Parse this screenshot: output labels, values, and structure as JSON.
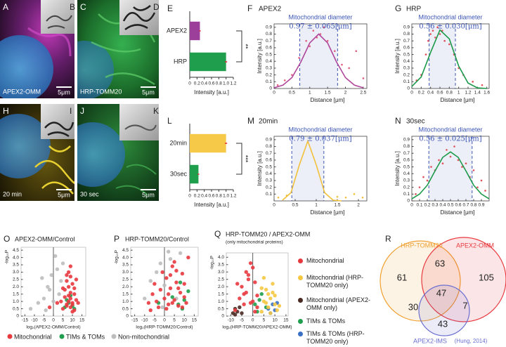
{
  "images": [
    {
      "label": "A",
      "inset_label": "B",
      "caption": "APEX2-OMM",
      "scale_bar": "5μm"
    },
    {
      "label": "C",
      "inset_label": "D",
      "caption": "HRP-TOMM20",
      "scale_bar": "5μm"
    },
    {
      "label": "H",
      "inset_label": "I",
      "caption": "20 min",
      "scale_bar": "5μm"
    },
    {
      "label": "J",
      "inset_label": "K",
      "caption": "30 sec",
      "scale_bar": "5μm"
    }
  ],
  "chart_data": [
    {
      "type": "bar",
      "panel": "E",
      "categories": [
        "APEX2",
        "HRP"
      ],
      "values": [
        0.28,
        1.0
      ],
      "errors": [
        0.02,
        0.03
      ],
      "colors": [
        "#9c3f9a",
        "#1f9e4d"
      ],
      "xlim": [
        0,
        1.2
      ],
      "xticks": [
        0,
        0.2,
        0.4,
        0.6,
        0.8,
        {
          "value": 1,
          "label": "1.0"
        },
        1.2
      ],
      "xlabel": "Intensity [a.u.]",
      "significance": "**"
    },
    {
      "type": "scatter",
      "panel": "F",
      "title": "APEX2",
      "subtitle": "Mitochondrial diameter",
      "annotation": "0.97 ± 0.065[μm]",
      "xlabel": "Distance [μm]",
      "ylabel": "Intensity [a.u.]",
      "xlim": [
        0,
        2.6
      ],
      "xticks": [
        0,
        0.5,
        1,
        1.5,
        2,
        2.5
      ],
      "ylim": [
        0,
        0.95
      ],
      "yticks": [
        0,
        0.1,
        0.2,
        0.3,
        0.4,
        0.5,
        0.6,
        0.7,
        0.8,
        0.9
      ],
      "color": "#b0479b",
      "point_color": "#e0607e",
      "points": {
        "x": [
          0.1,
          0.3,
          0.5,
          0.7,
          0.9,
          1.0,
          1.1,
          1.2,
          1.3,
          1.4,
          1.5,
          1.7,
          1.9,
          2.1,
          2.3,
          2.5
        ],
        "y": [
          0.05,
          0.12,
          0.2,
          0.45,
          0.7,
          0.62,
          0.85,
          0.75,
          0.8,
          0.9,
          0.7,
          0.55,
          0.35,
          0.3,
          0.55,
          0.15
        ]
      },
      "curve": {
        "x": [
          0,
          0.25,
          0.5,
          0.75,
          1,
          1.25,
          1.5,
          1.75,
          2,
          2.25,
          2.5
        ],
        "y": [
          0.01,
          0.05,
          0.16,
          0.39,
          0.67,
          0.8,
          0.67,
          0.39,
          0.16,
          0.05,
          0.01
        ]
      },
      "dashed_x": [
        0.72,
        1.78
      ]
    },
    {
      "type": "scatter",
      "panel": "G",
      "title": "HRP",
      "subtitle": "Mitochondrial diameter",
      "annotation": "0.56 ± 0.030[μm]",
      "xlabel": "Distance [μm]",
      "ylabel": "Intensity [a.u.]",
      "xlim": [
        0,
        1.65
      ],
      "xticks": [
        0,
        0.2,
        0.4,
        0.6,
        0.8,
        1,
        1.2,
        1.4,
        1.6
      ],
      "ylim": [
        0,
        0.95
      ],
      "yticks": [
        0,
        0.1,
        0.2,
        0.3,
        0.4,
        0.5,
        0.6,
        0.7,
        0.8,
        0.9
      ],
      "color": "#1b9a4a",
      "point_color": "#e0505a",
      "points": {
        "x": [
          0.1,
          0.2,
          0.3,
          0.35,
          0.4,
          0.45,
          0.5,
          0.55,
          0.6,
          0.65,
          0.7,
          0.8,
          0.9,
          1.0,
          1.1,
          1.3,
          1.5
        ],
        "y": [
          0.12,
          0.2,
          0.5,
          0.7,
          0.8,
          0.85,
          0.75,
          0.9,
          0.8,
          0.85,
          0.7,
          0.65,
          0.5,
          0.3,
          0.2,
          0.1,
          0.05
        ]
      },
      "curve": {
        "x": [
          0,
          0.2,
          0.4,
          0.6,
          0.8,
          1,
          1.2,
          1.4,
          1.6
        ],
        "y": [
          0.03,
          0.17,
          0.53,
          0.86,
          0.73,
          0.33,
          0.08,
          0.01,
          0
        ]
      },
      "dashed_x": [
        0.37,
        0.93
      ]
    },
    {
      "type": "bar",
      "panel": "L",
      "categories": [
        "20min",
        "30sec"
      ],
      "values": [
        1.0,
        0.24
      ],
      "errors": [
        0.03,
        0.02
      ],
      "colors": [
        "#f7c948",
        "#1f9e4d"
      ],
      "xlim": [
        0,
        1.2
      ],
      "xticks": [
        0,
        0.2,
        0.4,
        0.6,
        0.8,
        {
          "value": 1,
          "label": "1.0"
        },
        1.2
      ],
      "xlabel": "Intensity [a.u.]",
      "significance": "***"
    },
    {
      "type": "scatter",
      "panel": "M",
      "title": "20min",
      "subtitle": "Mitochondrial diameter",
      "annotation": "0.79 ± 0.037[μm]",
      "xlabel": "Distance [μm]",
      "ylabel": "Intensity [a.u.]",
      "xlim": [
        0,
        2.2
      ],
      "xticks": [
        0,
        0.5,
        1,
        1.5,
        2
      ],
      "ylim": [
        0,
        0.95
      ],
      "yticks": [
        0.1,
        0.2,
        0.3,
        0.4,
        0.5,
        0.6,
        0.7,
        0.8,
        0.9
      ],
      "color": "#f2c13c",
      "point_color": "#f2c13c",
      "points": {
        "x": [
          0.1,
          0.3,
          1.5,
          1.7,
          1.9,
          2.1
        ],
        "y": [
          0.05,
          0.08,
          0.06,
          0.05,
          0.1,
          0.05
        ]
      },
      "curve": {
        "x": [
          0.2,
          0.4,
          0.6,
          0.8,
          1,
          1.2,
          1.4,
          1.6
        ],
        "y": [
          0.01,
          0.12,
          0.53,
          0.88,
          0.53,
          0.12,
          0.01,
          0
        ]
      },
      "dashed_x": [
        0.42,
        1.18
      ]
    },
    {
      "type": "scatter",
      "panel": "N",
      "title": "30sec",
      "subtitle": "Mitochondrial diameter",
      "annotation": "0.56 ± 0.025[μm]",
      "xlabel": "Distance [μm]",
      "ylabel": "Intensity [a.u.]",
      "xlim": [
        0,
        1.0
      ],
      "xticks": [
        0,
        0.1,
        0.2,
        0.3,
        0.4,
        0.5,
        0.6,
        0.7,
        0.8,
        0.9
      ],
      "ylim": [
        0,
        0.95
      ],
      "yticks": [
        0,
        0.1,
        0.2,
        0.3,
        0.4,
        0.5,
        0.6,
        0.7,
        0.8,
        0.9
      ],
      "color": "#1b9a4a",
      "point_color": "#e0505a",
      "points": {
        "x": [
          0.05,
          0.1,
          0.15,
          0.2,
          0.25,
          0.3,
          0.35,
          0.4,
          0.45,
          0.5,
          0.55,
          0.6,
          0.65,
          0.7,
          0.75,
          0.8,
          0.85,
          0.9,
          0.95
        ],
        "y": [
          0.1,
          0.2,
          0.35,
          0.3,
          0.5,
          0.45,
          0.6,
          0.55,
          0.75,
          0.65,
          0.8,
          0.6,
          0.5,
          0.55,
          0.35,
          0.45,
          0.2,
          0.3,
          0.15
        ]
      },
      "curve": {
        "x": [
          0,
          0.1,
          0.2,
          0.3,
          0.4,
          0.5,
          0.6,
          0.7,
          0.8,
          0.9,
          1.0
        ],
        "y": [
          0.03,
          0.1,
          0.23,
          0.44,
          0.64,
          0.72,
          0.64,
          0.44,
          0.23,
          0.1,
          0.03
        ]
      },
      "dashed_x": [
        0.22,
        0.78
      ]
    },
    {
      "type": "scatter",
      "panel": "O",
      "title": "APEX2-OMM/Control",
      "xlabel": "log₂(APEX2-OMM/Control)",
      "ylabel": "-log₁₀P",
      "xlim": [
        -17,
        17
      ],
      "xticks": [
        -15,
        -10,
        -5,
        0,
        5,
        10,
        15
      ],
      "ylim": [
        0,
        4.7
      ],
      "yticks": [
        0,
        0.5,
        {
          "value": 1,
          "label": "1.0"
        },
        1.5,
        {
          "value": 2,
          "label": "2.0"
        },
        2.5,
        {
          "value": 3,
          "label": "3.0"
        },
        3.5,
        {
          "value": 4,
          "label": "4.0"
        },
        4.5
      ],
      "series": [
        {
          "name": "Mitochondrial",
          "color": "#e8393f",
          "x": [
            5,
            7,
            8,
            9,
            10,
            11,
            6,
            8,
            9,
            12,
            7,
            10,
            11,
            8,
            6,
            9,
            13,
            10,
            7,
            5,
            9,
            11,
            8,
            12,
            4,
            10,
            -2,
            2,
            9,
            7
          ],
          "values": [
            0.5,
            0.8,
            1.0,
            1.2,
            0.9,
            1.5,
            1.8,
            2.0,
            0.6,
            1.1,
            2.4,
            2.2,
            0.4,
            3.0,
            1.3,
            1.6,
            0.9,
            0.3,
            0.7,
            1.9,
            2.7,
            1.9,
            1.4,
            2.5,
            1.0,
            0.8,
            0.6,
            0.9,
            3.4,
            2.8
          ]
        },
        {
          "name": "TIMs & TOMs",
          "color": "#1f9e4d",
          "x": [
            6,
            8,
            9,
            10,
            7,
            11
          ],
          "values": [
            0.6,
            0.9,
            1.4,
            0.7,
            1.1,
            0.5
          ]
        },
        {
          "name": "Non-mitochondrial",
          "color": "#bdbdbd",
          "x": [
            -12,
            -8,
            -5,
            -3,
            -1,
            2,
            3,
            -4,
            1,
            4,
            -2,
            5,
            -6,
            0
          ],
          "values": [
            0.5,
            0.9,
            1.2,
            2.0,
            2.8,
            3.2,
            1.5,
            0.4,
            4.1,
            2.4,
            1.8,
            3.6,
            2.6,
            1.0
          ]
        }
      ]
    },
    {
      "type": "scatter",
      "panel": "P",
      "title": "HRP-TOMM20/Control",
      "xlabel": "log₂(HRP-TOMM20/Control)",
      "ylabel": "-log₁₀P",
      "xlim": [
        -17,
        17
      ],
      "xticks": [
        -15,
        -10,
        -5,
        0,
        5,
        10,
        15
      ],
      "ylim": [
        0,
        4.7
      ],
      "yticks": [
        0,
        0.5,
        {
          "value": 1,
          "label": "1.0"
        },
        1.5,
        {
          "value": 2,
          "label": "2.0"
        },
        2.5,
        {
          "value": 3,
          "label": "3.0"
        },
        3.5,
        {
          "value": 4,
          "label": "4.0"
        },
        4.5
      ],
      "series": [
        {
          "color": "#e8393f",
          "x": [
            -8,
            -6,
            -5,
            -3,
            -2,
            -1,
            0,
            1,
            2,
            3,
            4,
            5,
            6,
            7,
            8,
            9,
            10,
            11,
            12,
            -4,
            1,
            3,
            5,
            7,
            9,
            -7,
            2,
            6,
            10,
            4
          ],
          "values": [
            0.9,
            1.5,
            2.2,
            0.6,
            1.8,
            3.0,
            1.2,
            2.6,
            0.8,
            1.9,
            3.4,
            1.1,
            2.3,
            0.7,
            1.6,
            2.9,
            1.3,
            0.9,
            4.0,
            1.0,
            0.5,
            2.8,
            3.7,
            1.9,
            0.6,
            0.4,
            1.5,
            3.1,
            2.2,
            0.9
          ]
        },
        {
          "color": "#1f9e4d",
          "x": [
            -3,
            4,
            7,
            8,
            10,
            12,
            9
          ],
          "values": [
            0.9,
            1.3,
            0.8,
            2.3,
            1.1,
            1.7,
            0.5
          ]
        },
        {
          "color": "#bdbdbd",
          "x": [
            -10,
            -7,
            -4,
            -2,
            0,
            3,
            6,
            8,
            -1,
            2
          ],
          "values": [
            1.2,
            2.4,
            3.0,
            3.6,
            2.1,
            3.9,
            1.2,
            4.3,
            0.6,
            4.4
          ]
        }
      ]
    },
    {
      "type": "scatter",
      "panel": "Q",
      "title": "HRP-TOMM20 / APEX2-OMM",
      "subtitle": "(only mitochondrial proteins)",
      "xlabel": "log₂(HRP-TOMM20/APEX2-OMM)",
      "ylabel": "-log₁₀P",
      "xlim": [
        -12,
        16
      ],
      "xticks": [
        -10,
        -5,
        0,
        5,
        10,
        15
      ],
      "ylim": [
        0,
        4.3
      ],
      "yticks": [
        0,
        0.5,
        {
          "value": 1,
          "label": "1.0"
        },
        1.5,
        {
          "value": 2,
          "label": "2.0"
        },
        2.5,
        {
          "value": 3,
          "label": "3.0"
        },
        3.5,
        {
          "value": 4,
          "label": "4.0"
        }
      ],
      "series": [
        {
          "name": "Mitochondrial",
          "color": "#e8393f",
          "x": [
            -8,
            -6,
            -5,
            -4,
            -3,
            -2,
            -1,
            0,
            1,
            2,
            -7,
            -3,
            -1,
            0,
            2,
            1,
            -4,
            -2
          ],
          "values": [
            0.4,
            1.2,
            2.0,
            0.8,
            1.6,
            2.8,
            3.6,
            1.0,
            2.3,
            0.6,
            2.2,
            3.0,
            0.9,
            3.3,
            1.4,
            0.3,
            1.5,
            2.5
          ]
        },
        {
          "name": "Mitochondrial (HRP-TOMM20 only)",
          "color": "#f5c842",
          "x": [
            4,
            5,
            6,
            7,
            8,
            9,
            10,
            11,
            5,
            7,
            9,
            6,
            8,
            10,
            12,
            4
          ],
          "values": [
            0.3,
            1.0,
            1.8,
            0.6,
            1.2,
            2.2,
            0.8,
            0.4,
            2.6,
            1.5,
            1.6,
            0.9,
            0.2,
            1.4,
            0.7,
            1.9
          ]
        },
        {
          "name": "Mitochondrial (APEX2-OMM only)",
          "color": "#4a2a22",
          "x": [
            -9,
            -8,
            -7,
            -6,
            -5,
            -8
          ],
          "values": [
            0.2,
            0.5,
            0.3,
            0.6,
            0.2,
            0.1
          ]
        },
        {
          "name": "TIMs & TOMs",
          "color": "#1f9e4d",
          "x": [
            1,
            3,
            4,
            6,
            2
          ],
          "values": [
            0.8,
            1.1,
            1.5,
            0.6,
            0.3
          ]
        },
        {
          "name": "TIMs & TOMs (HRP-TOMM20 only)",
          "color": "#3a6fc4",
          "x": [
            7,
            9,
            10,
            11,
            8
          ],
          "values": [
            0.5,
            0.8,
            0.4,
            0.9,
            0.2
          ]
        }
      ]
    },
    {
      "type": "venn",
      "panel": "R",
      "sets": [
        {
          "name": "HRP-TOMM20",
          "color": "#f0a030"
        },
        {
          "name": "APEX2-OMM",
          "color": "#e8393f"
        },
        {
          "name": "APEX2-IMS",
          "source": "(Hung, 2014)",
          "color": "#6b6fd0"
        }
      ],
      "values": [
        61,
        63,
        105,
        30,
        47,
        7,
        43
      ]
    }
  ]
}
